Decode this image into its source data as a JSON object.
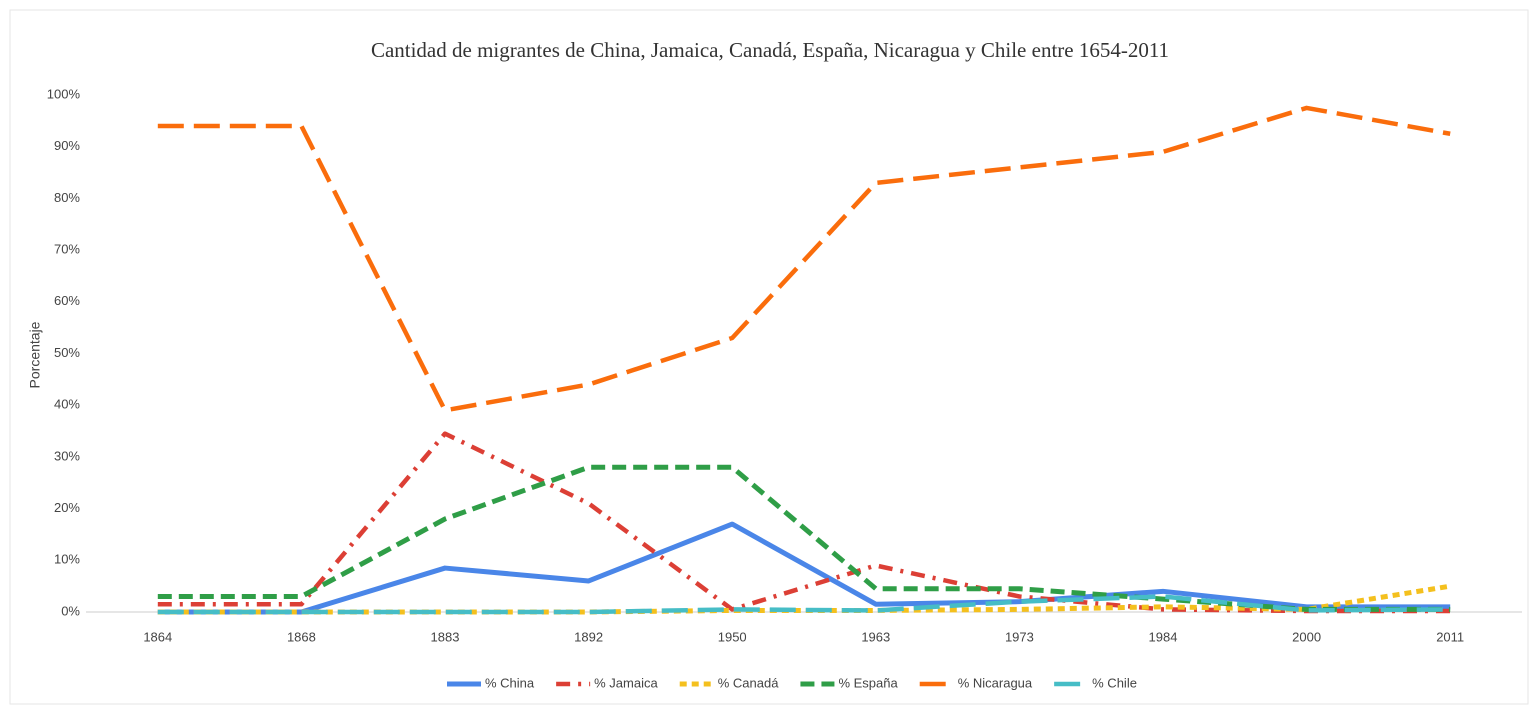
{
  "chart_data": {
    "type": "line",
    "title": "Cantidad de migrantes  de China, Jamaica, Canadá, España, Nicaragua y Chile entre 1654-2011",
    "y_label": "Porcentaje",
    "categories": [
      "1864",
      "1868",
      "1883",
      "1892",
      "1950",
      "1963",
      "1973",
      "1984",
      "2000",
      "2011"
    ],
    "ylim": [
      0,
      100
    ],
    "yticks": [
      {
        "value": 0,
        "label": "0%"
      },
      {
        "value": 10,
        "label": "10%"
      },
      {
        "value": 20,
        "label": "20%"
      },
      {
        "value": 30,
        "label": "30%"
      },
      {
        "value": 40,
        "label": "40%"
      },
      {
        "value": 50,
        "label": "50%"
      },
      {
        "value": 60,
        "label": "60%"
      },
      {
        "value": 70,
        "label": "70%"
      },
      {
        "value": 80,
        "label": "80%"
      },
      {
        "value": 90,
        "label": "90%"
      },
      {
        "value": 100,
        "label": "100%"
      }
    ],
    "grid": false,
    "legend": "bottom",
    "series": [
      {
        "name": "% China",
        "color": "#4a86e8",
        "dash": "solid",
        "values": [
          0,
          0,
          8.5,
          6,
          17,
          1.5,
          2,
          4,
          1,
          1
        ]
      },
      {
        "name": "% Jamaica",
        "color": "#dc3f35",
        "dash": "dashdot",
        "values": [
          1.5,
          1.5,
          34.5,
          21,
          0.5,
          9,
          3,
          0.5,
          0.2,
          0.2
        ]
      },
      {
        "name": "% Canadá",
        "color": "#f4c01e",
        "dash": "dotted",
        "values": [
          0,
          0,
          0,
          0,
          0.3,
          0.3,
          0.5,
          1,
          0.5,
          5
        ]
      },
      {
        "name": "% España",
        "color": "#2f9e47",
        "dash": "dashed",
        "values": [
          3,
          3,
          18,
          28,
          28,
          4.5,
          4.5,
          2.5,
          0.5,
          0.5
        ]
      },
      {
        "name": "% Nicaragua",
        "color": "#fa6d0c",
        "dash": "longdash",
        "values": [
          94,
          94,
          39,
          44,
          53,
          83,
          86,
          89,
          97.5,
          92.5
        ]
      },
      {
        "name": "% Chile",
        "color": "#46bdc6",
        "dash": "longdash",
        "values": [
          0,
          0,
          0,
          0,
          0.5,
          0.3,
          2,
          3,
          0.3,
          0.5
        ]
      }
    ]
  }
}
